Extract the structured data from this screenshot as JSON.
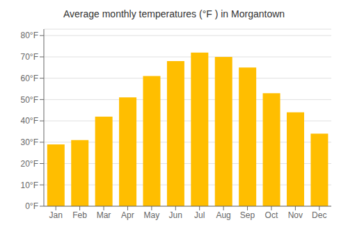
{
  "chart_data": {
    "type": "bar",
    "title": "Average monthly temperatures (°F ) in Morgantown",
    "categories": [
      "Jan",
      "Feb",
      "Mar",
      "Apr",
      "May",
      "Jun",
      "Jul",
      "Aug",
      "Sep",
      "Oct",
      "Nov",
      "Dec"
    ],
    "values": [
      29,
      31,
      42,
      51,
      61,
      68,
      72,
      70,
      65,
      53,
      44,
      34
    ],
    "color": "#FFBE00",
    "ylim": [
      0,
      83
    ],
    "yticks": [
      {
        "value": 0,
        "label": "0°F"
      },
      {
        "value": 10,
        "label": "10°F"
      },
      {
        "value": 20,
        "label": "20°F"
      },
      {
        "value": 30,
        "label": "30°F"
      },
      {
        "value": 40,
        "label": "40°F"
      },
      {
        "value": 50,
        "label": "50°F"
      },
      {
        "value": 60,
        "label": "60°F"
      },
      {
        "value": 70,
        "label": "70°F"
      },
      {
        "value": 80,
        "label": "80°F"
      }
    ],
    "grid": true
  }
}
